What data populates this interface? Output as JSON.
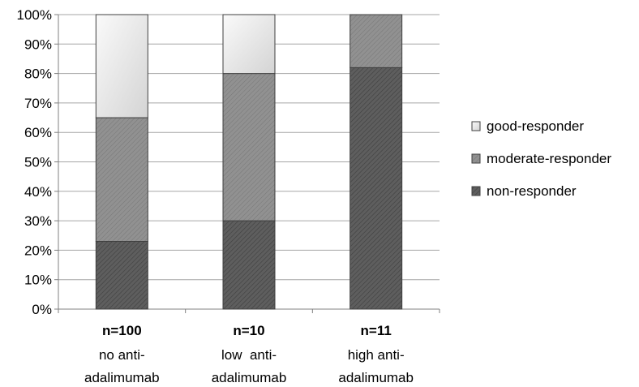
{
  "chart_data": {
    "type": "bar",
    "stacked": true,
    "percent": true,
    "title": "",
    "xlabel": "",
    "ylabel": "",
    "ylim": [
      0,
      100
    ],
    "yticks": [
      "0%",
      "10%",
      "20%",
      "30%",
      "40%",
      "50%",
      "60%",
      "70%",
      "80%",
      "90%",
      "100%"
    ],
    "grid": true,
    "legend_position": "right",
    "categories": [
      {
        "n": "n=100",
        "lines": [
          "no anti-",
          "adalimumab"
        ]
      },
      {
        "n": "n=10",
        "lines": [
          "low  anti-",
          "adalimumab"
        ]
      },
      {
        "n": "n=11",
        "lines": [
          "high anti-",
          "adalimumab"
        ]
      }
    ],
    "series": [
      {
        "name": "non-responder",
        "values": [
          23,
          30,
          82
        ],
        "color": "#5e5e5e"
      },
      {
        "name": "moderate-responder",
        "values": [
          42,
          50,
          18
        ],
        "color": "#8f8f8f"
      },
      {
        "name": "good-responder",
        "values": [
          35,
          20,
          0
        ],
        "color": "#ececec"
      }
    ],
    "legend_order": [
      "good-responder",
      "moderate-responder",
      "non-responder"
    ]
  }
}
